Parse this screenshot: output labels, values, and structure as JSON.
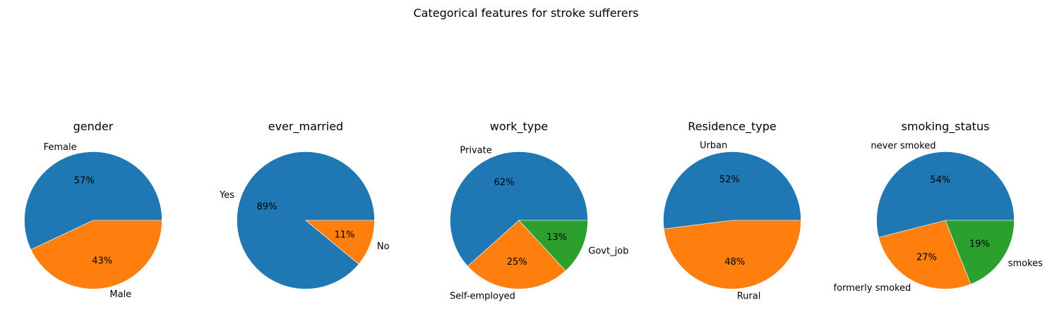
{
  "figure": {
    "suptitle": "Categorical features for stroke sufferers"
  },
  "chart_data": [
    {
      "type": "pie",
      "title": "gender",
      "labels": [
        "Female",
        "Male"
      ],
      "values": [
        57,
        43
      ],
      "colors": [
        "#1f77b4",
        "#ff7f0e"
      ]
    },
    {
      "type": "pie",
      "title": "ever_married",
      "labels": [
        "Yes",
        "No"
      ],
      "values": [
        89,
        11
      ],
      "colors": [
        "#1f77b4",
        "#ff7f0e"
      ]
    },
    {
      "type": "pie",
      "title": "work_type",
      "labels": [
        "Private",
        "Self-employed",
        "Govt_job"
      ],
      "values": [
        61,
        25,
        13
      ],
      "colors": [
        "#1f77b4",
        "#ff7f0e",
        "#2ca02c"
      ]
    },
    {
      "type": "pie",
      "title": "Residence_type",
      "labels": [
        "Urban",
        "Rural"
      ],
      "values": [
        52,
        48
      ],
      "colors": [
        "#1f77b4",
        "#ff7f0e"
      ]
    },
    {
      "type": "pie",
      "title": "smoking_status",
      "labels": [
        "never smoked",
        "formerly smoked",
        "smokes"
      ],
      "values": [
        54,
        27,
        19
      ],
      "colors": [
        "#1f77b4",
        "#ff7f0e",
        "#2ca02c"
      ]
    }
  ]
}
